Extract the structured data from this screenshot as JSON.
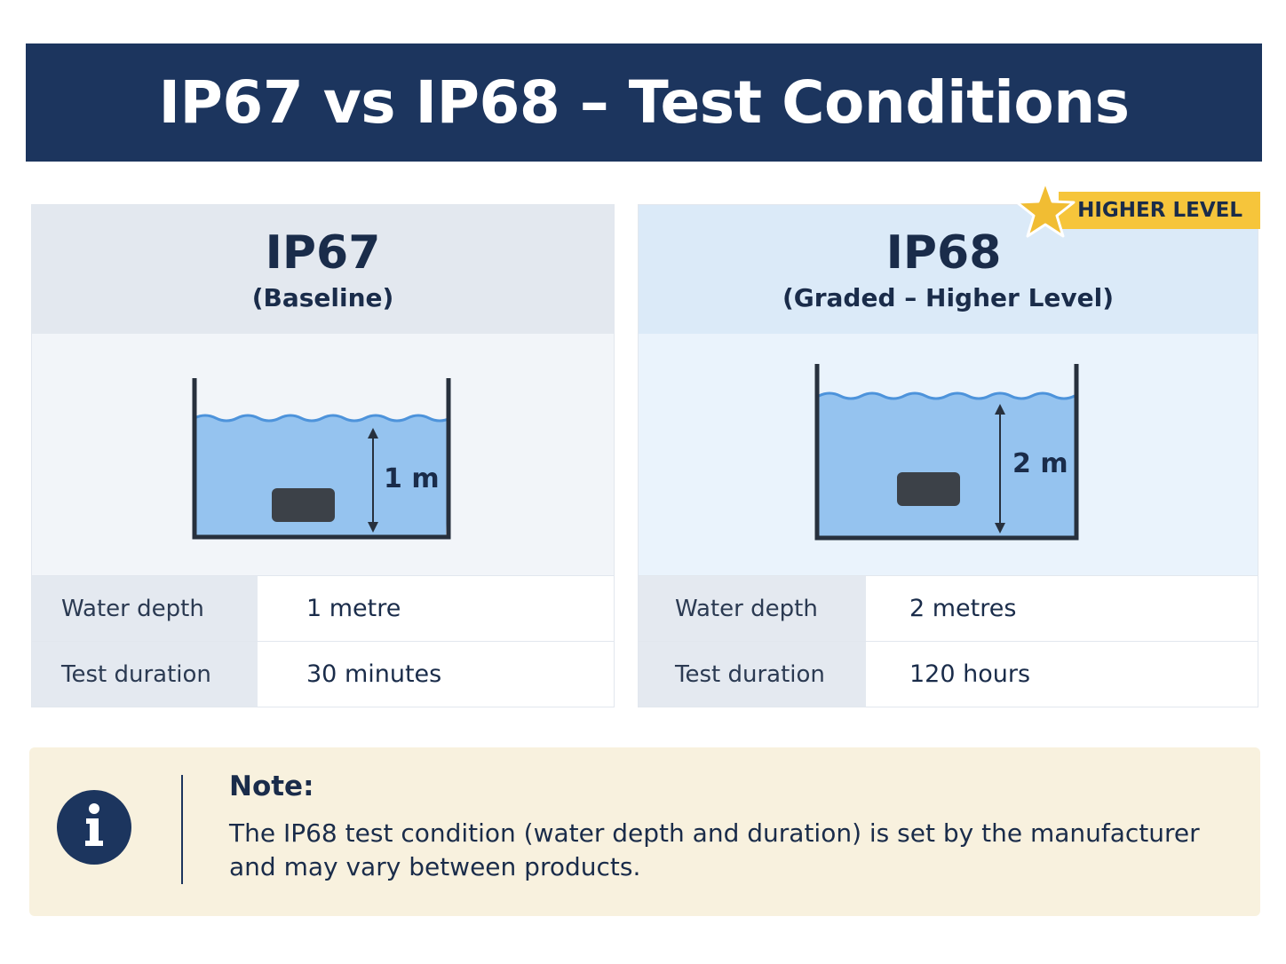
{
  "title": "IP67 vs IP68 – Test Conditions",
  "cards": [
    {
      "name": "IP67",
      "subtitle": "(Baseline)",
      "depth_label": "1 m",
      "specs": [
        {
          "label": "Water depth",
          "value": "1 metre"
        },
        {
          "label": "Test duration",
          "value": "30 minutes"
        }
      ]
    },
    {
      "name": "IP68",
      "subtitle": "(Graded – Higher Level)",
      "depth_label": "2 m",
      "specs": [
        {
          "label": "Water depth",
          "value": "2 metres"
        },
        {
          "label": "Test duration",
          "value": "120 hours"
        }
      ]
    }
  ],
  "badge": {
    "label": "HIGHER LEVEL",
    "icon": "star-icon"
  },
  "note": {
    "icon": "info-icon",
    "title": "Note:",
    "text_line1": "The IP68 test condition (water depth and duration) is set by the manufacturer",
    "text_line2": "and may vary between products."
  },
  "colors": {
    "banner": "#1c355e",
    "water": "#95c3ef",
    "badge": "#f6c53b",
    "note_bg": "#f8f1de"
  }
}
